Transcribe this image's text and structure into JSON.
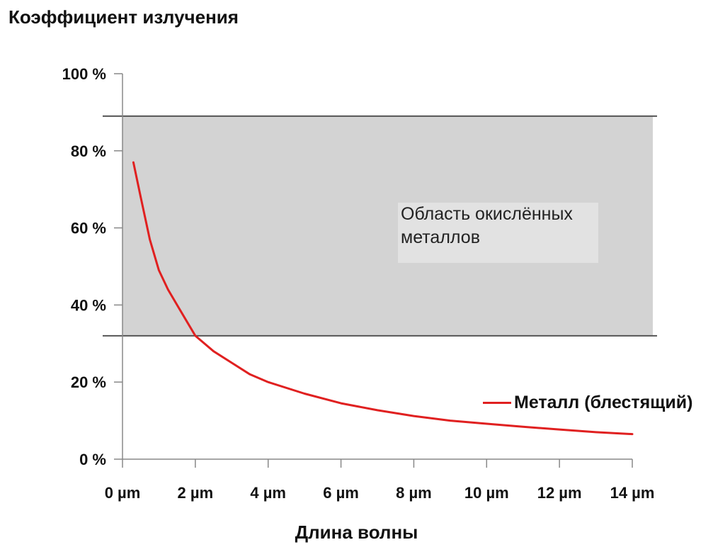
{
  "chart_data": {
    "type": "line",
    "ylabel": "Коэффициент излучения",
    "xlabel": "Длина волны",
    "x_ticks": [
      "0 µm",
      "2 µm",
      "4 µm",
      "6 µm",
      "8 µm",
      "10 µm",
      "12 µm",
      "14 µm"
    ],
    "y_ticks": [
      "100 %",
      "80 %",
      "60 %",
      "40 %",
      "20 %",
      "0 %"
    ],
    "xlim": [
      0,
      14
    ],
    "ylim": [
      0,
      100
    ],
    "region": {
      "label": "Область окислённых металлов",
      "y_from": 32,
      "y_to": 89,
      "color": "#d3d3d3"
    },
    "series": [
      {
        "name": "Металл (блестящий)",
        "color": "#e02020",
        "x": [
          0.3,
          0.5,
          0.75,
          1.0,
          1.25,
          1.5,
          1.75,
          2.0,
          2.5,
          3.0,
          3.5,
          4.0,
          5.0,
          6.0,
          7.0,
          8.0,
          9.0,
          10.0,
          11.0,
          12.0,
          13.0,
          14.0
        ],
        "y": [
          77,
          68,
          57,
          49,
          44,
          40,
          36,
          32,
          28,
          25,
          22,
          20,
          17,
          14.5,
          12.7,
          11.2,
          10,
          9.2,
          8.4,
          7.7,
          7.0,
          6.5
        ]
      }
    ]
  }
}
